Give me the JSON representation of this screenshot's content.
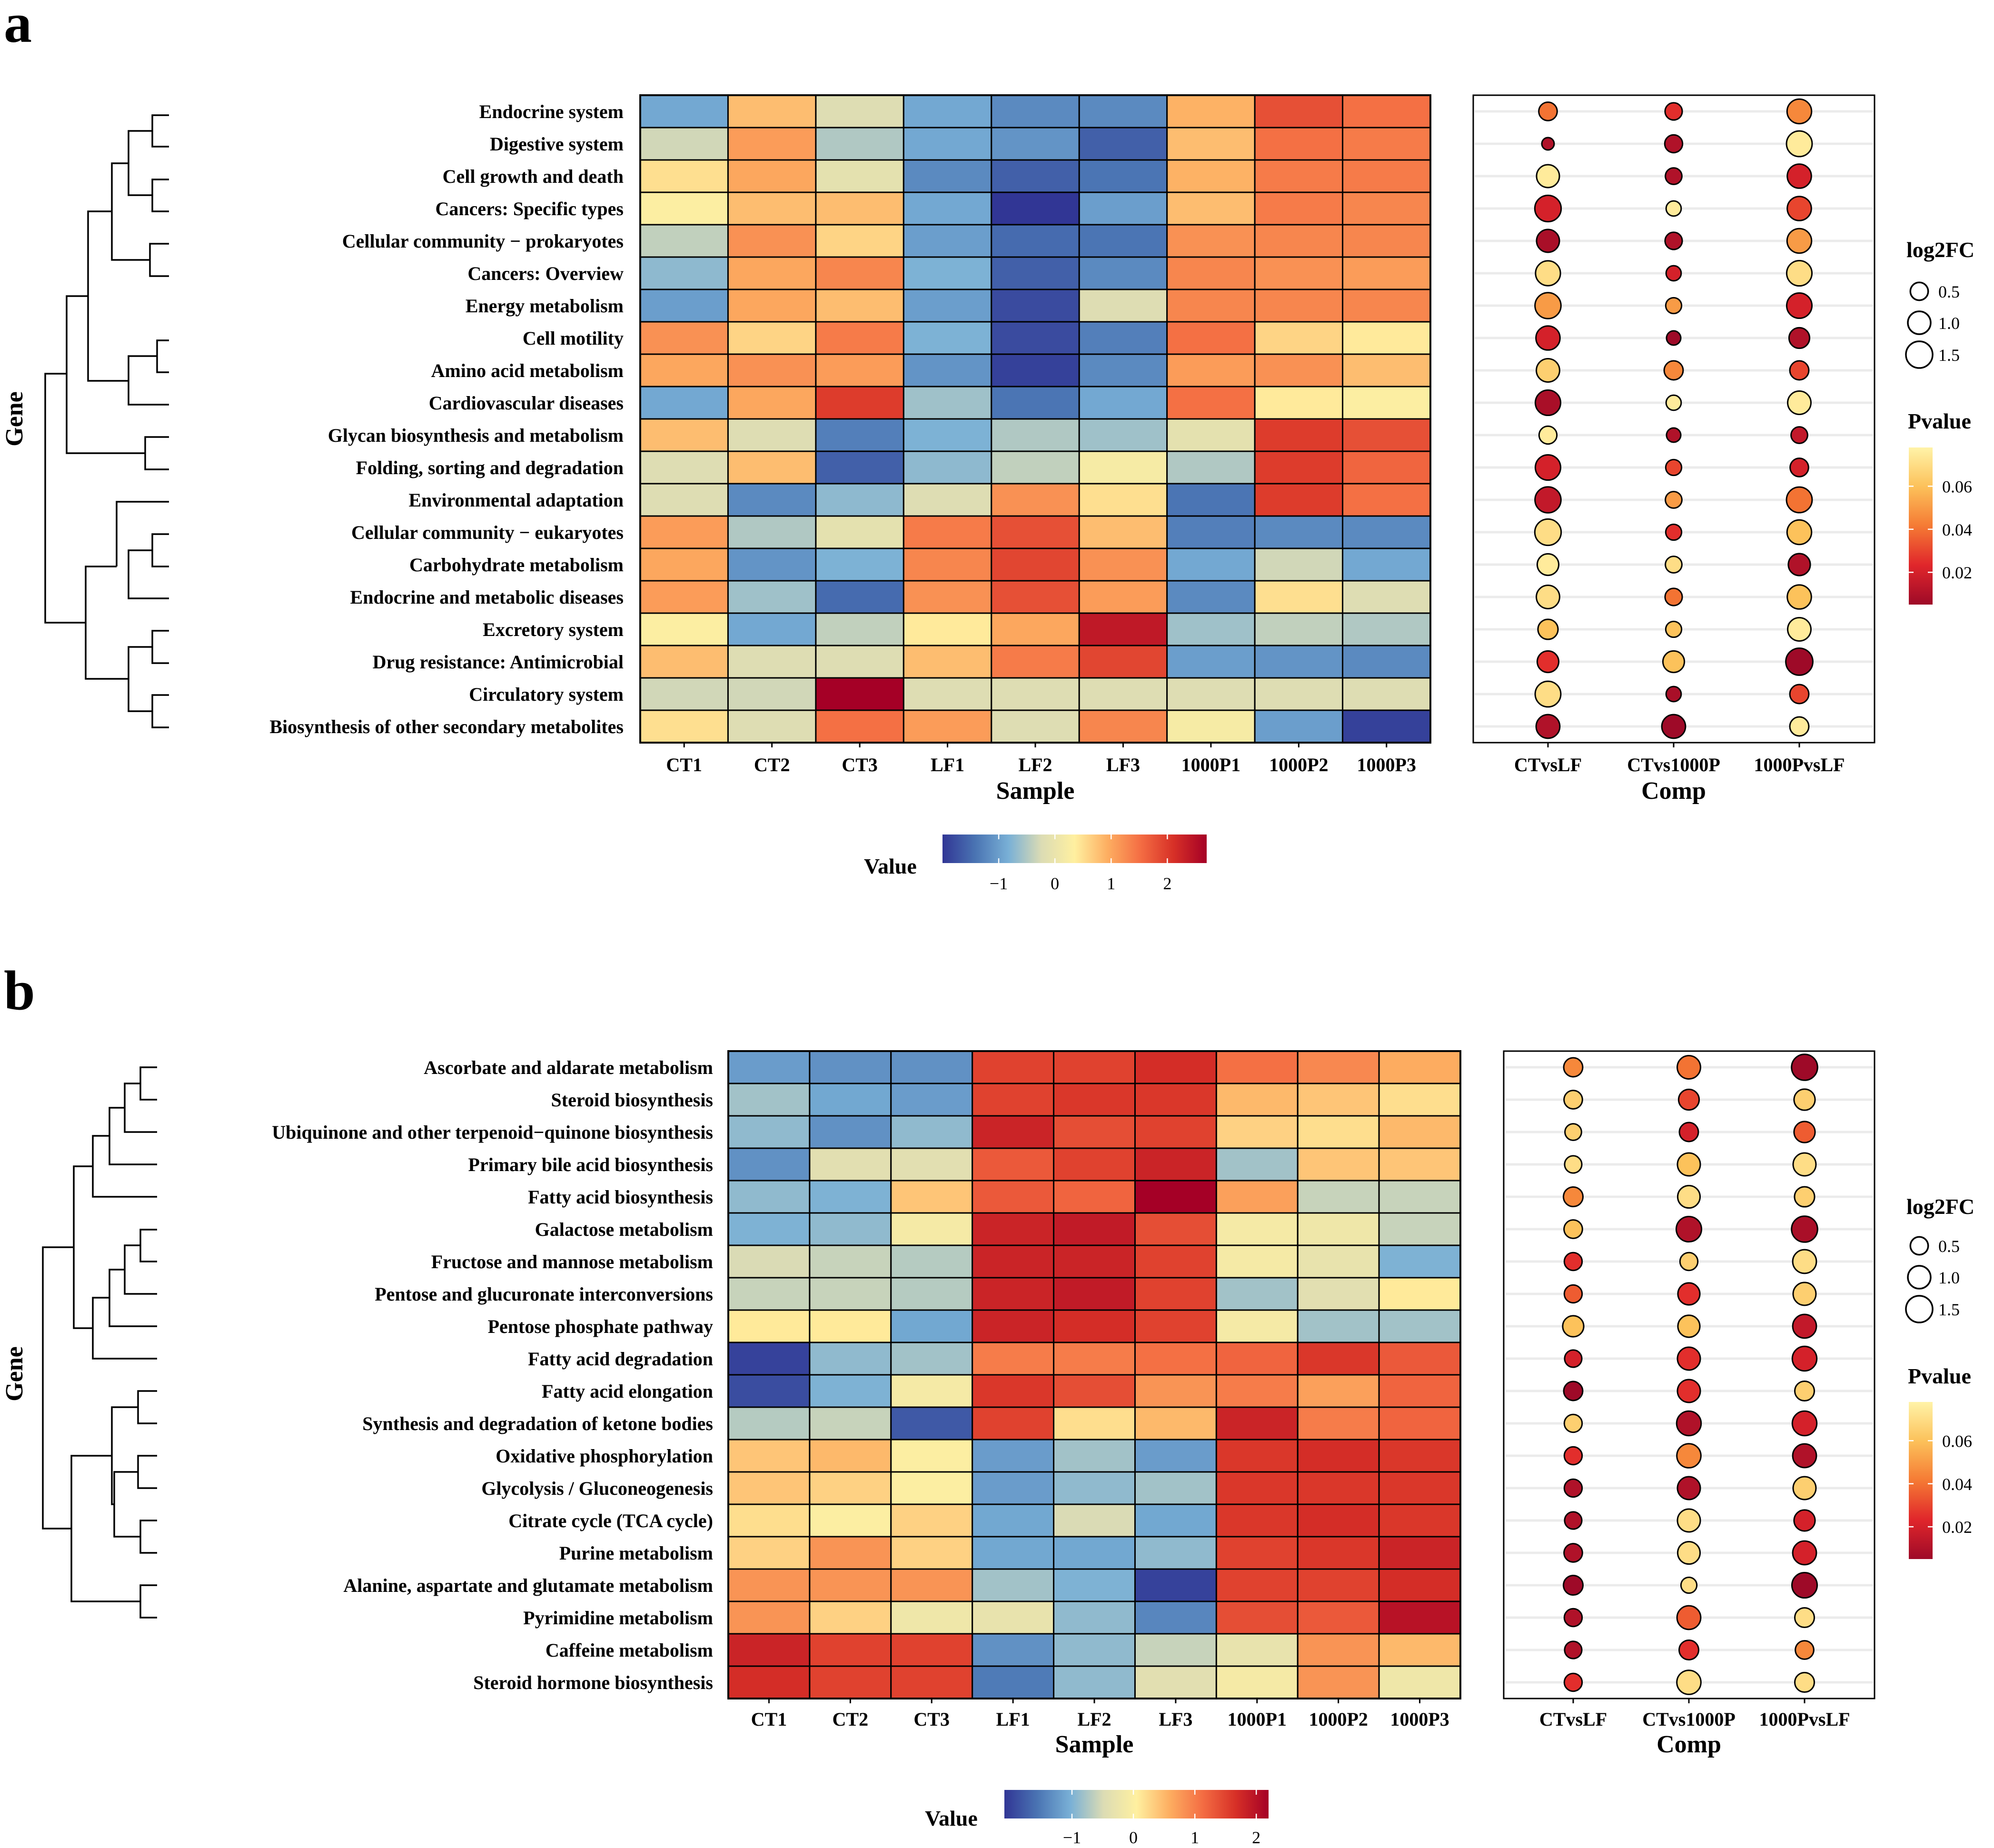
{
  "figure": {
    "panels": [
      "a",
      "b"
    ]
  },
  "colors": {
    "value_scale": [
      "#313695",
      "#4575b4",
      "#74add1",
      "#abd9e9",
      "#e0f3f8",
      "#ffffbf",
      "#fee090",
      "#fdae61",
      "#f46d43",
      "#d73027",
      "#a50026"
    ],
    "value_scale_display": [
      "#313695",
      "#4a74b3",
      "#79b0d6",
      "#dcdcb4",
      "#fff0a0",
      "#fdae61",
      "#f46d43",
      "#d73027",
      "#a50026"
    ],
    "pvalue_scale": [
      "#9e0a28",
      "#e0262b",
      "#f57a34",
      "#fcc15a",
      "#fff3a8"
    ],
    "point_edge": "#000000",
    "gridline": "#ebebeb"
  },
  "chart_data": [
    {
      "panel": "a",
      "type": "heatmap",
      "xlabel": "Sample",
      "ylabel": "Gene",
      "samples": [
        "CT1",
        "CT2",
        "CT3",
        "LF1",
        "LF2",
        "LF3",
        "1000P1",
        "1000P2",
        "1000P3"
      ],
      "rows": [
        "Endocrine system",
        "Digestive system",
        "Cell growth and death",
        "Cancers: Specific types",
        "Cellular community − prokaryotes",
        "Cancers: Overview",
        "Energy metabolism",
        "Cell motility",
        "Amino acid metabolism",
        "Cardiovascular diseases",
        "Glycan biosynthesis and metabolism",
        "Folding, sorting and degradation",
        "Environmental adaptation",
        "Cellular community − eukaryotes",
        "Carbohydrate metabolism",
        "Endocrine and metabolic diseases",
        "Excretory system",
        "Drug resistance: Antimicrobial",
        "Circulatory system",
        "Biosynthesis of other secondary metabolites"
      ],
      "values": [
        [
          -0.9,
          0.8,
          -0.2,
          -0.9,
          -1.2,
          -1.2,
          0.9,
          1.8,
          1.5
        ],
        [
          -0.3,
          1.1,
          -0.5,
          -0.9,
          -1.1,
          -1.6,
          0.8,
          1.5,
          1.4
        ],
        [
          0.5,
          1.0,
          -0.1,
          -1.2,
          -1.6,
          -1.4,
          0.9,
          1.4,
          1.4
        ],
        [
          0.3,
          0.8,
          0.8,
          -0.9,
          -2.0,
          -1.0,
          0.8,
          1.4,
          1.3
        ],
        [
          -0.4,
          1.2,
          0.6,
          -1.0,
          -1.5,
          -1.4,
          1.2,
          1.3,
          1.3
        ],
        [
          -0.7,
          1.0,
          1.3,
          -0.8,
          -1.6,
          -1.2,
          1.3,
          1.2,
          1.1
        ],
        [
          -1.0,
          1.0,
          0.8,
          -1.0,
          -1.8,
          -0.2,
          1.3,
          1.3,
          1.3
        ],
        [
          1.2,
          0.6,
          1.4,
          -0.8,
          -1.8,
          -1.3,
          1.5,
          0.6,
          0.4
        ],
        [
          1.0,
          1.2,
          1.1,
          -1.1,
          -1.9,
          -1.2,
          1.1,
          1.2,
          0.8
        ],
        [
          -0.9,
          1.0,
          2.0,
          -0.6,
          -1.4,
          -0.9,
          1.5,
          0.4,
          0.3
        ],
        [
          0.8,
          -0.2,
          -1.3,
          -0.8,
          -0.5,
          -0.6,
          -0.1,
          2.0,
          1.8
        ],
        [
          -0.2,
          0.8,
          -1.6,
          -0.7,
          -0.4,
          0.2,
          -0.5,
          2.0,
          1.6
        ],
        [
          -0.2,
          -1.2,
          -0.7,
          -0.2,
          1.2,
          0.5,
          -1.4,
          2.0,
          1.5
        ],
        [
          1.1,
          -0.5,
          -0.1,
          1.4,
          1.8,
          0.8,
          -1.3,
          -1.2,
          -1.2
        ],
        [
          1.0,
          -1.1,
          -0.8,
          1.3,
          1.9,
          1.2,
          -0.9,
          -0.3,
          -0.9
        ],
        [
          1.1,
          -0.6,
          -1.5,
          1.2,
          1.8,
          1.1,
          -1.2,
          0.5,
          -0.2
        ],
        [
          0.3,
          -0.9,
          -0.4,
          0.4,
          1.0,
          2.4,
          -0.6,
          -0.4,
          -0.5
        ],
        [
          0.8,
          -0.2,
          -0.2,
          0.8,
          1.4,
          1.9,
          -1.0,
          -1.1,
          -1.2
        ],
        [
          -0.3,
          -0.3,
          2.7,
          -0.2,
          -0.2,
          -0.2,
          -0.2,
          -0.2,
          -0.2
        ],
        [
          0.5,
          -0.2,
          1.5,
          1.1,
          -0.2,
          1.3,
          0.2,
          -1.0,
          -1.9
        ]
      ],
      "colorbar": {
        "title": "Value",
        "ticks": [
          "−1",
          "0",
          "1",
          "2"
        ],
        "tick_values": [
          -1,
          0,
          1,
          2
        ],
        "range": [
          -2,
          2.7
        ]
      },
      "bubble": {
        "xlabel": "Comp",
        "comparisons": [
          "CTvsLF",
          "CTvs1000P",
          "1000PvsLF"
        ],
        "log2fc": [
          [
            0.55,
            0.45,
            1.2
          ],
          [
            0.15,
            0.5,
            1.35
          ],
          [
            1.0,
            0.4,
            1.15
          ],
          [
            1.45,
            0.3,
            1.15
          ],
          [
            1.0,
            0.45,
            1.2
          ],
          [
            1.25,
            0.3,
            1.3
          ],
          [
            1.4,
            0.35,
            1.3
          ],
          [
            1.15,
            0.25,
            0.75
          ],
          [
            1.05,
            0.6,
            0.6
          ],
          [
            1.3,
            0.3,
            1.05
          ],
          [
            0.5,
            0.25,
            0.4
          ],
          [
            1.3,
            0.35,
            0.55
          ],
          [
            1.4,
            0.4,
            1.35
          ],
          [
            1.45,
            0.35,
            1.2
          ],
          [
            0.85,
            0.4,
            0.9
          ],
          [
            1.05,
            0.45,
            1.15
          ],
          [
            0.7,
            0.35,
            1.05
          ],
          [
            0.85,
            0.85,
            1.55
          ],
          [
            1.35,
            0.3,
            0.6
          ],
          [
            1.1,
            1.1,
            0.6
          ]
        ],
        "pvalue": [
          [
            0.04,
            0.025,
            0.045
          ],
          [
            0.01,
            0.01,
            0.075
          ],
          [
            0.075,
            0.01,
            0.02
          ],
          [
            0.02,
            0.075,
            0.03
          ],
          [
            0.008,
            0.01,
            0.05
          ],
          [
            0.07,
            0.02,
            0.07
          ],
          [
            0.05,
            0.05,
            0.02
          ],
          [
            0.02,
            0.005,
            0.01
          ],
          [
            0.065,
            0.045,
            0.03
          ],
          [
            0.008,
            0.075,
            0.075
          ],
          [
            0.075,
            0.01,
            0.015
          ],
          [
            0.02,
            0.03,
            0.02
          ],
          [
            0.015,
            0.05,
            0.04
          ],
          [
            0.07,
            0.025,
            0.06
          ],
          [
            0.075,
            0.07,
            0.01
          ],
          [
            0.07,
            0.04,
            0.06
          ],
          [
            0.06,
            0.06,
            0.075
          ],
          [
            0.025,
            0.06,
            0.005
          ],
          [
            0.07,
            0.008,
            0.03
          ],
          [
            0.01,
            0.005,
            0.075
          ]
        ]
      },
      "size_legend": {
        "title": "log2FC",
        "labels": [
          "0.5",
          "1.0",
          "1.5"
        ],
        "values": [
          0.5,
          1.0,
          1.5
        ]
      },
      "pvalue_legend": {
        "title": "Pvalue",
        "labels": [
          "0.06",
          "0.04",
          "0.02"
        ],
        "values": [
          0.06,
          0.04,
          0.02
        ],
        "range": [
          0.005,
          0.078
        ]
      }
    },
    {
      "panel": "b",
      "type": "heatmap",
      "xlabel": "Sample",
      "ylabel": "Gene",
      "samples": [
        "CT1",
        "CT2",
        "CT3",
        "LF1",
        "LF2",
        "LF3",
        "1000P1",
        "1000P2",
        "1000P3"
      ],
      "rows": [
        "Ascorbate and aldarate metabolism",
        "Steroid biosynthesis",
        "Ubiquinone and other terpenoid−quinone biosynthesis",
        "Primary bile acid biosynthesis",
        "Fatty acid biosynthesis",
        "Galactose metabolism",
        "Fructose and mannose metabolism",
        "Pentose and glucuronate interconversions",
        "Pentose phosphate pathway",
        "Fatty acid degradation",
        "Fatty acid elongation",
        "Synthesis and degradation of ketone bodies",
        "Oxidative phosphorylation",
        "Glycolysis / Gluconeogenesis",
        "Citrate cycle (TCA cycle)",
        "Purine metabolism",
        "Alanine, aspartate and glutamate metabolism",
        "Pyrimidine metabolism",
        "Caffeine metabolism",
        "Steroid hormone biosynthesis"
      ],
      "values": [
        [
          -1.2,
          -1.3,
          -1.3,
          1.5,
          1.5,
          1.7,
          1.1,
          0.9,
          0.6
        ],
        [
          -0.8,
          -1.1,
          -1.2,
          1.5,
          1.6,
          1.6,
          0.5,
          0.4,
          0.2
        ],
        [
          -0.9,
          -1.3,
          -0.9,
          1.8,
          1.4,
          1.5,
          0.3,
          0.2,
          0.5
        ],
        [
          -1.3,
          -0.4,
          -0.4,
          1.3,
          1.5,
          1.8,
          -0.8,
          0.4,
          0.4
        ],
        [
          -0.9,
          -1.0,
          0.4,
          1.3,
          1.2,
          2.2,
          0.7,
          -0.6,
          -0.6
        ],
        [
          -1.0,
          -0.9,
          -0.1,
          1.8,
          1.9,
          1.4,
          -0.1,
          -0.2,
          -0.6
        ],
        [
          -0.5,
          -0.6,
          -0.7,
          1.8,
          1.8,
          1.5,
          -0.1,
          -0.3,
          -1.0
        ],
        [
          -0.6,
          -0.6,
          -0.7,
          1.8,
          1.9,
          1.5,
          -0.8,
          -0.4,
          0.1
        ],
        [
          0.1,
          0.1,
          -1.1,
          1.8,
          1.7,
          1.5,
          -0.1,
          -0.8,
          -0.8
        ],
        [
          -2.0,
          -0.9,
          -0.8,
          1.0,
          1.0,
          1.1,
          1.2,
          1.6,
          1.3
        ],
        [
          -1.9,
          -1.0,
          -0.1,
          1.6,
          1.4,
          0.8,
          1.0,
          0.7,
          1.2
        ],
        [
          -0.7,
          -0.6,
          -1.8,
          1.5,
          0.2,
          0.5,
          1.8,
          1.0,
          1.2
        ],
        [
          0.4,
          0.5,
          0.0,
          -1.2,
          -0.8,
          -1.2,
          1.6,
          1.7,
          1.6
        ],
        [
          0.4,
          0.3,
          0.0,
          -1.2,
          -0.9,
          -0.8,
          1.6,
          1.6,
          1.6
        ],
        [
          0.2,
          0.0,
          0.3,
          -1.1,
          -0.5,
          -1.1,
          1.6,
          1.7,
          1.6
        ],
        [
          0.3,
          0.8,
          0.3,
          -1.1,
          -1.1,
          -0.9,
          1.5,
          1.6,
          1.8
        ],
        [
          0.8,
          0.8,
          0.8,
          -0.8,
          -1.0,
          -2.0,
          1.5,
          1.5,
          1.7
        ],
        [
          0.8,
          0.3,
          -0.2,
          -0.3,
          -0.9,
          -1.4,
          1.4,
          1.3,
          2.0
        ],
        [
          1.8,
          1.5,
          1.5,
          -1.3,
          -0.9,
          -0.6,
          -0.3,
          0.8,
          0.5
        ],
        [
          1.7,
          1.5,
          1.5,
          -1.5,
          -0.9,
          -0.4,
          -0.1,
          0.8,
          -0.2
        ]
      ],
      "colorbar": {
        "title": "Value",
        "ticks": [
          "−1",
          "0",
          "1",
          "2"
        ],
        "tick_values": [
          -1,
          0,
          1,
          2
        ],
        "range": [
          -2.1,
          2.2
        ]
      },
      "bubble": {
        "xlabel": "Comp",
        "comparisons": [
          "CTvsLF",
          "CTvs1000P",
          "1000PvsLF"
        ],
        "log2fc": [
          [
            0.6,
            1.05,
            1.4
          ],
          [
            0.55,
            0.75,
            0.8
          ],
          [
            0.4,
            0.6,
            0.8
          ],
          [
            0.45,
            1.0,
            1.0
          ],
          [
            0.65,
            0.95,
            0.7
          ],
          [
            0.55,
            1.3,
            1.4
          ],
          [
            0.5,
            0.5,
            1.1
          ],
          [
            0.5,
            0.9,
            1.0
          ],
          [
            0.8,
            0.9,
            1.1
          ],
          [
            0.45,
            1.0,
            1.2
          ],
          [
            0.6,
            1.0,
            0.65
          ],
          [
            0.5,
            1.2,
            1.2
          ],
          [
            0.5,
            1.15,
            1.1
          ],
          [
            0.5,
            1.0,
            1.0
          ],
          [
            0.45,
            1.0,
            0.8
          ],
          [
            0.55,
            0.95,
            1.1
          ],
          [
            0.65,
            0.35,
            1.3
          ],
          [
            0.5,
            1.1,
            0.65
          ],
          [
            0.45,
            0.65,
            0.55
          ],
          [
            0.5,
            1.15,
            0.65
          ]
        ],
        "pvalue": [
          [
            0.045,
            0.04,
            0.005
          ],
          [
            0.065,
            0.03,
            0.065
          ],
          [
            0.065,
            0.02,
            0.035
          ],
          [
            0.07,
            0.06,
            0.07
          ],
          [
            0.045,
            0.07,
            0.065
          ],
          [
            0.06,
            0.01,
            0.008
          ],
          [
            0.025,
            0.065,
            0.07
          ],
          [
            0.035,
            0.025,
            0.065
          ],
          [
            0.06,
            0.06,
            0.015
          ],
          [
            0.02,
            0.025,
            0.02
          ],
          [
            0.005,
            0.025,
            0.065
          ],
          [
            0.065,
            0.01,
            0.02
          ],
          [
            0.025,
            0.045,
            0.01
          ],
          [
            0.01,
            0.01,
            0.065
          ],
          [
            0.01,
            0.07,
            0.02
          ],
          [
            0.01,
            0.07,
            0.02
          ],
          [
            0.005,
            0.07,
            0.005
          ],
          [
            0.01,
            0.035,
            0.07
          ],
          [
            0.01,
            0.025,
            0.045
          ],
          [
            0.025,
            0.07,
            0.07
          ]
        ]
      },
      "size_legend": {
        "title": "log2FC",
        "labels": [
          "0.5",
          "1.0",
          "1.5"
        ],
        "values": [
          0.5,
          1.0,
          1.5
        ]
      },
      "pvalue_legend": {
        "title": "Pvalue",
        "labels": [
          "0.06",
          "0.04",
          "0.02"
        ],
        "values": [
          0.06,
          0.04,
          0.02
        ],
        "range": [
          0.005,
          0.078
        ]
      }
    }
  ]
}
